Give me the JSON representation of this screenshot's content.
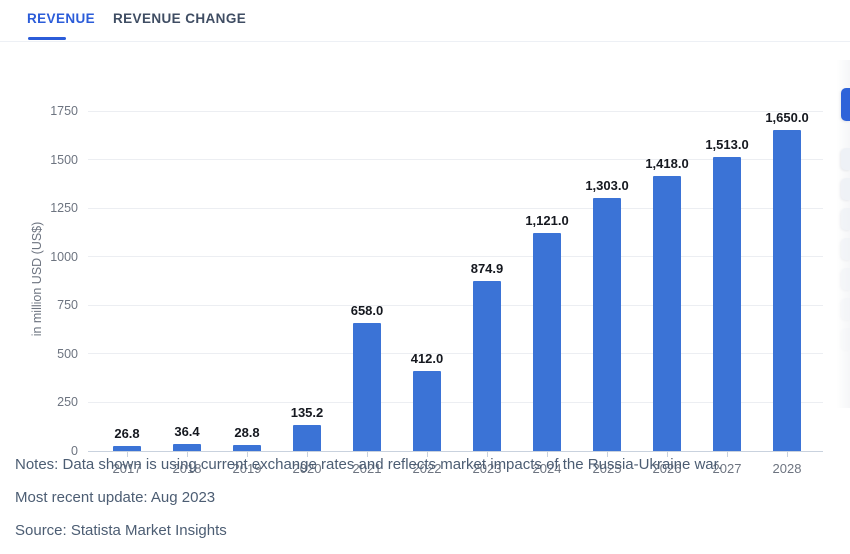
{
  "tabs": {
    "items": [
      {
        "label": "REVENUE",
        "active": true
      },
      {
        "label": "REVENUE CHANGE",
        "active": false
      }
    ]
  },
  "chart_data": {
    "type": "bar",
    "title": "",
    "categories": [
      "2017",
      "2018",
      "2019",
      "2020",
      "2021",
      "2022",
      "2023",
      "2024",
      "2025",
      "2026",
      "2027",
      "2028"
    ],
    "values": [
      26.8,
      36.4,
      28.8,
      135.2,
      658.0,
      412.0,
      874.9,
      1121.0,
      1303.0,
      1418.0,
      1513.0,
      1650.0
    ],
    "value_labels": [
      "26.8",
      "36.4",
      "28.8",
      "135.2",
      "658.0",
      "412.0",
      "874.9",
      "1,121.0",
      "1,303.0",
      "1,418.0",
      "1,513.0",
      "1,650.0"
    ],
    "xlabel": "",
    "ylabel": "in million USD (US$)",
    "yticks": [
      0,
      250,
      500,
      750,
      1000,
      1250,
      1500,
      1750
    ],
    "ylim": [
      0,
      1750
    ],
    "grid": true,
    "legend_position": "none",
    "bar_color": "#3b73d6"
  },
  "notes": {
    "notes_line": "Notes: Data shown is using current exchange rates and reflects market impacts of the Russia-Ukraine war.",
    "update_line": "Most recent update: Aug 2023",
    "source_line": "Source: Statista Market Insights"
  },
  "colors": {
    "accent_blue": "#2b5cd9",
    "bar_blue": "#3b73d6",
    "tab_inactive_text": "#3f4d63",
    "grid_line": "#eceef2",
    "axis_line": "#c9d2de",
    "tick_label": "#6d7480",
    "value_label": "#15181f",
    "notes_text": "#4c5d73"
  }
}
